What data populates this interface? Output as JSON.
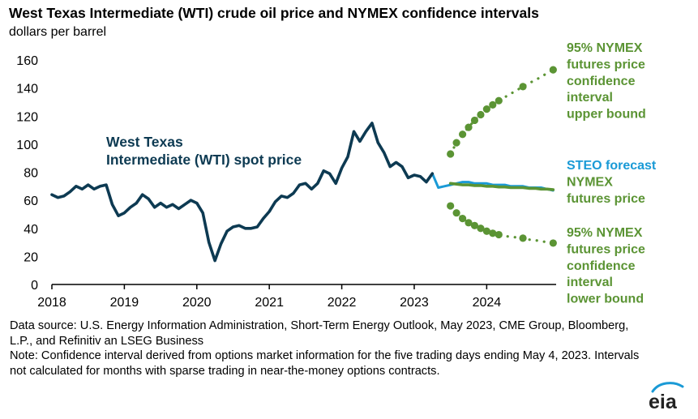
{
  "title": "West Texas Intermediate (WTI) crude oil price and NYMEX confidence intervals",
  "subtitle": "dollars per barrel",
  "source_note": "Data source: U.S. Energy Information Administration, Short-Term Energy Outlook, May 2023, CME Group, Bloomberg, L.P., and Refinitiv an LSEG Business",
  "interval_note": "Note: Confidence interval derived from options market information for the five trading days ending May 4, 2023. Intervals not calculated for months with sparse trading in near-the-money options contracts.",
  "logo_text": "eia",
  "colors": {
    "wti": "#0d3a52",
    "steo": "#1a9ad6",
    "green": "#5b9434",
    "axis": "#000000"
  },
  "chart_data": {
    "type": "line",
    "xlim": [
      2018.0,
      2024.958
    ],
    "ylim": [
      0,
      160
    ],
    "y_ticks": [
      0,
      20,
      40,
      60,
      80,
      100,
      120,
      140,
      160
    ],
    "x_ticks": [
      2018,
      2019,
      2020,
      2021,
      2022,
      2023,
      2024
    ],
    "x_tick_labels": [
      "2018",
      "2019",
      "2020",
      "2021",
      "2022",
      "2023",
      "2024"
    ],
    "grid": false,
    "series": [
      {
        "name": "West Texas Intermediate (WTI) spot price",
        "key": "wti",
        "style": "solid",
        "x": [
          2018.0,
          2018.083,
          2018.167,
          2018.25,
          2018.333,
          2018.417,
          2018.5,
          2018.583,
          2018.667,
          2018.75,
          2018.833,
          2018.917,
          2019.0,
          2019.083,
          2019.167,
          2019.25,
          2019.333,
          2019.417,
          2019.5,
          2019.583,
          2019.667,
          2019.75,
          2019.833,
          2019.917,
          2020.0,
          2020.083,
          2020.167,
          2020.25,
          2020.333,
          2020.417,
          2020.5,
          2020.583,
          2020.667,
          2020.75,
          2020.833,
          2020.917,
          2021.0,
          2021.083,
          2021.167,
          2021.25,
          2021.333,
          2021.417,
          2021.5,
          2021.583,
          2021.667,
          2021.75,
          2021.833,
          2021.917,
          2022.0,
          2022.083,
          2022.167,
          2022.25,
          2022.333,
          2022.417,
          2022.5,
          2022.583,
          2022.667,
          2022.75,
          2022.833,
          2022.917,
          2023.0,
          2023.083,
          2023.167,
          2023.25
        ],
        "y": [
          64,
          62,
          63,
          66,
          70,
          68,
          71,
          68,
          70,
          71,
          57,
          49,
          51,
          55,
          58,
          64,
          61,
          55,
          58,
          55,
          57,
          54,
          57,
          60,
          58,
          51,
          30,
          17,
          29,
          38,
          41,
          42,
          40,
          40,
          41,
          47,
          52,
          59,
          63,
          62,
          65,
          71,
          72,
          68,
          72,
          81,
          79,
          72,
          83,
          91,
          109,
          102,
          109,
          115,
          101,
          94,
          84,
          87,
          84,
          76,
          78,
          77,
          73,
          79
        ]
      },
      {
        "name": "STEO forecast",
        "key": "steo",
        "style": "solid",
        "x": [
          2023.25,
          2023.333,
          2023.417,
          2023.5,
          2023.583,
          2023.667,
          2023.75,
          2023.833,
          2023.917,
          2024.0,
          2024.083,
          2024.167,
          2024.25,
          2024.333,
          2024.417,
          2024.5,
          2024.583,
          2024.667,
          2024.75,
          2024.833,
          2024.917
        ],
        "y": [
          79,
          69,
          70,
          71,
          72,
          73,
          73,
          72,
          72,
          72,
          71,
          71,
          71,
          70,
          70,
          70,
          69,
          69,
          69,
          68,
          67
        ]
      },
      {
        "name": "NYMEX futures price",
        "key": "futures",
        "style": "solid",
        "x": [
          2023.5,
          2023.583,
          2023.667,
          2023.75,
          2023.833,
          2023.917,
          2024.0,
          2024.083,
          2024.167,
          2024.25,
          2024.333,
          2024.417,
          2024.5,
          2024.583,
          2024.667,
          2024.75,
          2024.833,
          2024.917
        ],
        "y": [
          72,
          71.5,
          71,
          71,
          70.5,
          70.5,
          70,
          70,
          69.5,
          69.5,
          69,
          69,
          69,
          68.5,
          68.5,
          68,
          68,
          67.5
        ]
      },
      {
        "name": "95% NYMEX futures price confidence interval upper bound",
        "key": "upper",
        "style": "dotted",
        "x": [
          2023.5,
          2023.583,
          2023.667,
          2023.75,
          2023.833,
          2023.917,
          2024.0,
          2024.083,
          2024.167,
          2024.25,
          2024.333,
          2024.417,
          2024.5,
          2024.583,
          2024.667,
          2024.75,
          2024.833,
          2024.917
        ],
        "y": [
          93,
          101,
          107,
          112,
          117,
          121,
          125,
          128,
          131,
          133.5,
          136,
          138.5,
          141,
          143.5,
          145.5,
          148,
          150.5,
          153
        ],
        "marker_x": [
          2023.5,
          2023.583,
          2023.667,
          2023.75,
          2023.833,
          2023.917,
          2024.0,
          2024.083,
          2024.167,
          2024.5,
          2024.917
        ],
        "marker_y": [
          93,
          101,
          107,
          112,
          117,
          121,
          125,
          128,
          131,
          141,
          153
        ]
      },
      {
        "name": "95% NYMEX futures price confidence interval lower bound",
        "key": "lower",
        "style": "dotted",
        "x": [
          2023.5,
          2023.583,
          2023.667,
          2023.75,
          2023.833,
          2023.917,
          2024.0,
          2024.083,
          2024.167,
          2024.25,
          2024.333,
          2024.417,
          2024.5,
          2024.583,
          2024.667,
          2024.75,
          2024.833,
          2024.917
        ],
        "y": [
          56,
          51,
          47,
          44,
          42,
          40,
          38,
          36.5,
          35.5,
          34.5,
          34,
          33.5,
          33,
          32,
          31.5,
          31,
          30,
          29.5
        ],
        "marker_x": [
          2023.5,
          2023.583,
          2023.667,
          2023.75,
          2023.833,
          2023.917,
          2024.0,
          2024.083,
          2024.167,
          2024.5,
          2024.917
        ],
        "marker_y": [
          56,
          51,
          47,
          44,
          42,
          40,
          38,
          36.5,
          35.5,
          33,
          29.5
        ]
      }
    ],
    "annotations": [
      {
        "key": "wti_label",
        "lines": [
          "West Texas",
          "Intermediate (WTI) spot price"
        ],
        "color": "#0d3a52"
      },
      {
        "key": "upper_label",
        "lines": [
          "95% NYMEX",
          "futures price",
          "confidence",
          "interval",
          "upper bound"
        ],
        "color": "#5b9434"
      },
      {
        "key": "forecast_label",
        "lines": [
          [
            {
              "text": "STEO forecast",
              "color": "#1a9ad6"
            }
          ],
          [
            {
              "text": "NYMEX",
              "color": "#5b9434"
            }
          ],
          [
            {
              "text": "futures price",
              "color": "#5b9434"
            }
          ]
        ]
      },
      {
        "key": "lower_label",
        "lines": [
          "95% NYMEX",
          "futures price",
          "confidence",
          "interval",
          "lower bound"
        ],
        "color": "#5b9434"
      }
    ]
  }
}
